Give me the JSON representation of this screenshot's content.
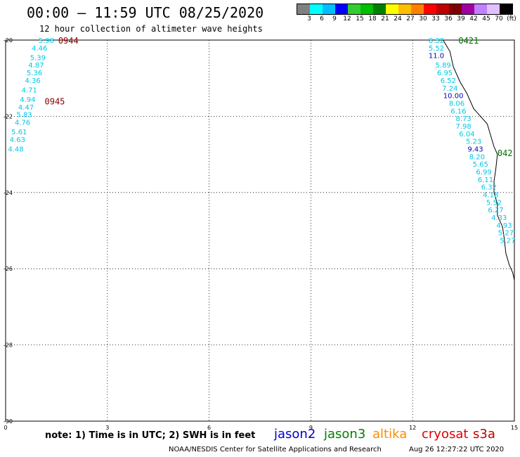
{
  "header": {
    "title": "00:00 – 11:59 UTC 08/25/2020",
    "subtitle": "12 hour collection of altimeter wave heights"
  },
  "legend_scale": {
    "colors": [
      "#808080",
      "#00ffff",
      "#00bfff",
      "#0000ff",
      "#32cd32",
      "#00c000",
      "#008000",
      "#ffff00",
      "#ffbf00",
      "#ff8000",
      "#ff0000",
      "#c00000",
      "#800000",
      "#a000a0",
      "#c080ff",
      "#e0c0ff",
      "#000000"
    ],
    "labels": [
      "3",
      "6",
      "9",
      "12",
      "15",
      "18",
      "21",
      "24",
      "27",
      "30",
      "33",
      "36",
      "39",
      "42",
      "45",
      "70",
      "(ft)"
    ]
  },
  "chart_data": {
    "type": "scatter",
    "xlim": [
      0,
      15
    ],
    "ylim": [
      -30,
      -20
    ],
    "x_ticks": [
      "0",
      "3",
      "6",
      "9",
      "12",
      "15"
    ],
    "y_ticks": [
      "-20",
      "-22",
      "-24",
      "-26",
      "-28",
      "-30"
    ],
    "grid": true,
    "series": [
      {
        "name": "left pass",
        "time_labels": [
          {
            "text": "0944",
            "lon": 1.55,
            "lat": -20.0
          },
          {
            "text": "0945",
            "lon": 1.15,
            "lat": -21.6
          }
        ],
        "points": [
          {
            "lon": 1.2,
            "lat": -20.0,
            "v": "5.98"
          },
          {
            "lon": 1.0,
            "lat": -20.2,
            "v": "4.46"
          },
          {
            "lon": 0.95,
            "lat": -20.45,
            "v": "5.39"
          },
          {
            "lon": 0.9,
            "lat": -20.65,
            "v": "4.87"
          },
          {
            "lon": 0.85,
            "lat": -20.85,
            "v": "5.36"
          },
          {
            "lon": 0.8,
            "lat": -21.05,
            "v": "4.36"
          },
          {
            "lon": 0.7,
            "lat": -21.3,
            "v": "4.71"
          },
          {
            "lon": 0.65,
            "lat": -21.55,
            "v": "4.94"
          },
          {
            "lon": 0.6,
            "lat": -21.75,
            "v": "4.47"
          },
          {
            "lon": 0.55,
            "lat": -21.95,
            "v": "5.83"
          },
          {
            "lon": 0.5,
            "lat": -22.15,
            "v": "4.76"
          },
          {
            "lon": 0.4,
            "lat": -22.4,
            "v": "5.61"
          },
          {
            "lon": 0.35,
            "lat": -22.6,
            "v": "4.63"
          },
          {
            "lon": 0.3,
            "lat": -22.85,
            "v": "4.48"
          }
        ]
      },
      {
        "name": "right pass",
        "time_labels": [
          {
            "text": "0421",
            "lon": 13.35,
            "lat": -20.0
          },
          {
            "text": "042",
            "lon": 14.5,
            "lat": -22.95
          }
        ],
        "points": [
          {
            "lon": 12.7,
            "lat": -20.0,
            "v": "8.32"
          },
          {
            "lon": 12.7,
            "lat": -20.2,
            "v": "5.52"
          },
          {
            "lon": 12.7,
            "lat": -20.4,
            "v": "11.0"
          },
          {
            "lon": 12.9,
            "lat": -20.65,
            "v": "5.89"
          },
          {
            "lon": 12.95,
            "lat": -20.85,
            "v": "6.95"
          },
          {
            "lon": 13.05,
            "lat": -21.05,
            "v": "6.52"
          },
          {
            "lon": 13.1,
            "lat": -21.25,
            "v": "7.24"
          },
          {
            "lon": 13.2,
            "lat": -21.45,
            "v": "10.00"
          },
          {
            "lon": 13.3,
            "lat": -21.65,
            "v": "8.06"
          },
          {
            "lon": 13.35,
            "lat": -21.85,
            "v": "6.16"
          },
          {
            "lon": 13.5,
            "lat": -22.05,
            "v": "8.73"
          },
          {
            "lon": 13.5,
            "lat": -22.25,
            "v": "7.98"
          },
          {
            "lon": 13.6,
            "lat": -22.45,
            "v": "6.04"
          },
          {
            "lon": 13.8,
            "lat": -22.65,
            "v": "5.23"
          },
          {
            "lon": 13.85,
            "lat": -22.85,
            "v": "9.43"
          },
          {
            "lon": 13.9,
            "lat": -23.05,
            "v": "8.20"
          },
          {
            "lon": 14.0,
            "lat": -23.25,
            "v": "5.65"
          },
          {
            "lon": 14.1,
            "lat": -23.45,
            "v": "6.99"
          },
          {
            "lon": 14.15,
            "lat": -23.65,
            "v": "6.11"
          },
          {
            "lon": 14.25,
            "lat": -23.85,
            "v": "6.32"
          },
          {
            "lon": 14.3,
            "lat": -24.05,
            "v": "4.18"
          },
          {
            "lon": 14.4,
            "lat": -24.25,
            "v": "5.52"
          },
          {
            "lon": 14.45,
            "lat": -24.45,
            "v": "6.27"
          },
          {
            "lon": 14.55,
            "lat": -24.65,
            "v": "4.33"
          },
          {
            "lon": 14.7,
            "lat": -24.85,
            "v": "4.93"
          },
          {
            "lon": 14.75,
            "lat": -25.05,
            "v": "5.27"
          },
          {
            "lon": 14.8,
            "lat": -25.25,
            "v": "5.27"
          }
        ]
      }
    ],
    "coastline": [
      [
        12.9,
        -20.0
      ],
      [
        13.1,
        -20.3
      ],
      [
        13.2,
        -20.7
      ],
      [
        13.4,
        -21.1
      ],
      [
        13.6,
        -21.4
      ],
      [
        13.8,
        -21.8
      ],
      [
        14.0,
        -22.0
      ],
      [
        14.2,
        -22.2
      ],
      [
        14.3,
        -22.5
      ],
      [
        14.4,
        -22.8
      ],
      [
        14.5,
        -23.0
      ],
      [
        14.45,
        -23.4
      ],
      [
        14.4,
        -23.7
      ],
      [
        14.4,
        -24.0
      ],
      [
        14.5,
        -24.3
      ],
      [
        14.5,
        -24.6
      ],
      [
        14.65,
        -24.9
      ],
      [
        14.7,
        -25.2
      ],
      [
        14.75,
        -25.6
      ],
      [
        14.85,
        -25.9
      ],
      [
        14.95,
        -26.1
      ],
      [
        15.0,
        -26.3
      ]
    ]
  },
  "footer": {
    "note": "note: 1) Time is in UTC; 2) SWH is in feet",
    "missions": [
      {
        "label": "jason2",
        "color": "#0000cd"
      },
      {
        "label": "jason3",
        "color": "#008000"
      },
      {
        "label": "altika",
        "color": "#ff8c00"
      },
      {
        "label": "cryosat",
        "color": "#e00000"
      },
      {
        "label": "s3a",
        "color": "#c00000"
      }
    ],
    "credit": "NOAA/NESDIS Center for Satellite Applications and Research",
    "timestamp": "Aug 26 12:27:22 UTC 2020"
  }
}
